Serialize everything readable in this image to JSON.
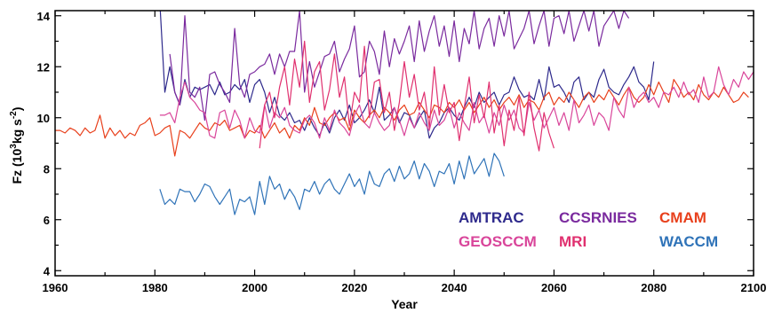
{
  "chart_data": {
    "type": "line",
    "xlabel": "Year",
    "ylabel": "Fz (10",
    "ylabel_sup1": "3",
    "ylabel_mid": "kg s",
    "ylabel_sup2": "-2",
    "ylabel_end": ")",
    "xlim": [
      1960,
      2100
    ],
    "ylim": [
      3.8,
      14.2
    ],
    "xticks": [
      1960,
      1980,
      2000,
      2020,
      2040,
      2060,
      2080,
      2100
    ],
    "yticks": [
      4,
      6,
      8,
      10,
      12,
      14
    ],
    "legend_position": "bottom-right",
    "grid": false,
    "series": [
      {
        "name": "AMTRAC",
        "color": "#2e2a8c",
        "x_start": 1981,
        "values": [
          14.5,
          11.0,
          12.0,
          11.0,
          10.5,
          11.5,
          10.8,
          11.2,
          11.1,
          11.2,
          11.3,
          10.9,
          11.4,
          10.9,
          11.0,
          11.3,
          11.1,
          11.5,
          10.6,
          11.3,
          11.5,
          11.0,
          10.2,
          10.8,
          10.1,
          9.9,
          10.2,
          9.8,
          9.9,
          9.5,
          10.0,
          9.6,
          9.3,
          9.8,
          9.4,
          10.0,
          10.3,
          9.9,
          10.5,
          9.8,
          10.0,
          10.3,
          10.7,
          10.2,
          11.2,
          9.9,
          10.1,
          10.4,
          9.8,
          10.2,
          10.1,
          9.6,
          10.0,
          10.3,
          9.2,
          9.6,
          9.8,
          10.2,
          10.4,
          10.1,
          9.9,
          10.4,
          10.8,
          10.4,
          11.0,
          10.6,
          10.8,
          11.0,
          10.5,
          10.9,
          11.0,
          11.6,
          11.1,
          10.8,
          10.9,
          10.7,
          11.5,
          10.7,
          12.0,
          11.2,
          11.3,
          11.0,
          10.6,
          11.4,
          11.6,
          10.7,
          11.0,
          10.8,
          11.5,
          11.9,
          11.2,
          11.0,
          10.9,
          11.3,
          11.6,
          12.0,
          11.4,
          11.2,
          10.7,
          12.2
        ]
      },
      {
        "name": "CCSRNIES",
        "color": "#7a2a9e",
        "x_start": 1983,
        "values": [
          12.5,
          11.0,
          10.5,
          14.0,
          11.0,
          10.8,
          11.2,
          9.9,
          11.7,
          11.8,
          11.3,
          11.0,
          10.6,
          13.5,
          11.3,
          10.8,
          11.7,
          11.8,
          12.0,
          12.1,
          12.5,
          11.7,
          12.5,
          12.0,
          12.6,
          12.6,
          14.2,
          11.0,
          12.2,
          11.2,
          11.8,
          12.4,
          12.5,
          13.0,
          11.8,
          12.3,
          12.7,
          13.6,
          11.6,
          11.8,
          13.0,
          12.6,
          11.7,
          13.4,
          12.0,
          13.1,
          12.5,
          13.0,
          13.6,
          12.2,
          13.8,
          12.6,
          13.4,
          14.0,
          12.8,
          13.6,
          12.4,
          13.8,
          12.2,
          13.5,
          12.9,
          14.2,
          12.7,
          13.5,
          13.9,
          12.8,
          14.0,
          13.2,
          14.2,
          12.7,
          13.1,
          13.5,
          14.2,
          12.9,
          13.6,
          14.2,
          12.8,
          13.9,
          14.0,
          13.3,
          14.2,
          13.0,
          13.6,
          14.2,
          13.4,
          14.2,
          12.8,
          13.6,
          13.9,
          14.2,
          13.5,
          14.2,
          13.9
        ]
      },
      {
        "name": "CMAM",
        "color": "#e8401c",
        "x_start": 1960,
        "values": [
          9.5,
          9.5,
          9.4,
          9.6,
          9.5,
          9.3,
          9.6,
          9.4,
          9.5,
          10.1,
          9.2,
          9.6,
          9.3,
          9.5,
          9.2,
          9.4,
          9.3,
          9.7,
          9.8,
          10.0,
          9.3,
          9.4,
          9.6,
          9.7,
          8.5,
          9.5,
          9.4,
          9.2,
          9.5,
          9.8,
          9.6,
          9.5,
          9.8,
          9.7,
          9.9,
          9.5,
          9.6,
          9.7,
          9.2,
          9.5,
          9.4,
          9.7,
          9.2,
          9.5,
          9.8,
          9.4,
          9.6,
          9.2,
          9.7,
          9.5,
          10.0,
          9.7,
          10.4,
          9.8,
          9.7,
          10.0,
          10.2,
          9.9,
          10.0,
          9.5,
          10.3,
          10.0,
          9.8,
          10.1,
          10.3,
          10.0,
          10.4,
          10.2,
          9.9,
          10.3,
          10.5,
          10.1,
          10.2,
          10.6,
          10.3,
          10.0,
          10.5,
          10.4,
          10.2,
          10.6,
          10.4,
          10.7,
          10.3,
          10.6,
          10.2,
          10.5,
          10.8,
          10.4,
          10.7,
          10.3,
          10.6,
          10.8,
          10.5,
          10.9,
          10.4,
          10.7,
          10.6,
          10.3,
          10.8,
          11.0,
          10.5,
          10.8,
          10.6,
          11.0,
          10.7,
          10.4,
          10.8,
          11.0,
          10.6,
          10.9,
          10.7,
          11.1,
          10.8,
          10.5,
          10.9,
          11.2,
          10.8,
          10.6,
          10.8,
          11.3,
          10.9,
          11.4,
          11.0,
          10.6,
          11.5,
          11.2,
          10.8,
          11.0,
          10.7,
          11.3,
          10.9,
          10.7,
          11.0,
          10.8,
          11.2,
          10.9,
          10.6,
          10.7,
          11.0,
          10.8
        ]
      },
      {
        "name": "GEOSCCM",
        "color": "#d9459a",
        "x_start": 1981,
        "values": [
          10.1,
          10.1,
          10.2,
          9.8,
          10.8,
          11.4,
          10.8,
          10.6,
          10.3,
          10.2,
          9.3,
          9.2,
          10.2,
          10.3,
          9.6,
          10.3,
          9.9,
          9.2,
          10.0,
          9.5,
          9.4,
          10.5,
          9.6,
          10.2,
          10.0,
          10.4,
          9.7,
          9.5,
          9.4,
          9.9,
          10.1,
          9.8,
          9.2,
          10.0,
          9.5,
          10.3,
          9.8,
          9.6,
          9.3,
          10.1,
          10.5,
          9.8,
          9.6,
          10.2,
          9.8,
          9.5,
          9.7,
          10.4,
          9.9,
          9.3,
          10.0,
          9.6,
          10.2,
          9.8,
          9.5,
          10.3,
          9.7,
          9.9,
          10.4,
          9.6,
          10.2,
          9.8,
          9.5,
          10.6,
          9.8,
          10.1,
          9.4,
          10.2,
          9.7,
          10.5,
          9.9,
          10.3,
          9.6,
          9.4,
          10.6,
          9.9,
          10.3,
          9.6,
          10.0,
          10.4,
          9.7,
          10.2,
          9.5,
          10.7,
          9.8,
          10.1,
          10.5,
          9.7,
          10.2,
          10.0,
          9.5,
          10.8,
          10.3,
          10.0,
          11.2,
          10.4,
          10.8,
          11.0,
          10.6,
          10.8,
          10.4,
          11.0,
          10.9,
          11.2,
          10.8,
          11.4,
          10.9,
          11.1,
          10.6,
          11.6,
          10.8,
          11.0,
          12.0,
          11.3,
          10.9,
          11.5,
          11.2,
          11.8,
          11.5,
          11.8
        ]
      },
      {
        "name": "MRI",
        "color": "#e0306f",
        "x_start": 2001,
        "values": [
          8.8,
          10.5,
          11.0,
          10.0,
          11.2,
          12.0,
          10.5,
          12.3,
          11.2,
          13.0,
          10.6,
          11.8,
          12.2,
          10.3,
          11.1,
          12.5,
          10.8,
          11.6,
          9.7,
          11.0,
          10.6,
          12.8,
          10.0,
          11.4,
          11.5,
          10.2,
          11.0,
          9.5,
          10.6,
          12.2,
          10.8,
          11.7,
          10.3,
          11.0,
          9.6,
          12.0,
          10.1,
          11.3,
          10.2,
          10.6,
          9.1,
          10.4,
          11.6,
          9.8,
          10.9,
          10.0,
          11.4,
          9.4,
          10.5,
          8.9,
          10.3,
          9.5,
          10.8,
          9.3,
          11.0,
          9.6,
          8.7,
          10.2,
          9.4,
          8.8
        ]
      },
      {
        "name": "WACCM",
        "color": "#2f73b8",
        "x_start": 1981,
        "values": [
          7.2,
          6.6,
          6.8,
          6.6,
          7.2,
          7.1,
          7.1,
          6.7,
          7.0,
          7.4,
          7.3,
          6.9,
          6.6,
          6.9,
          7.2,
          6.2,
          6.8,
          6.7,
          6.9,
          6.2,
          7.5,
          6.6,
          7.7,
          7.2,
          7.4,
          6.8,
          7.2,
          6.9,
          6.4,
          7.2,
          7.1,
          7.5,
          7.0,
          7.4,
          7.6,
          7.2,
          7.0,
          7.4,
          7.8,
          7.3,
          7.6,
          7.0,
          7.9,
          7.4,
          7.3,
          7.8,
          8.0,
          7.5,
          8.1,
          7.6,
          7.8,
          8.3,
          7.6,
          8.2,
          7.9,
          7.3,
          7.9,
          7.8,
          8.2,
          7.4,
          8.3,
          7.6,
          8.5,
          7.8,
          8.1,
          8.4,
          7.7,
          8.6,
          8.3,
          7.7
        ]
      }
    ]
  },
  "legend": {
    "items": [
      {
        "label": "AMTRAC",
        "color": "#2e2a8c"
      },
      {
        "label": "CCSRNIES",
        "color": "#7a2a9e"
      },
      {
        "label": "CMAM",
        "color": "#e8401c"
      },
      {
        "label": "GEOSCCM",
        "color": "#d9459a"
      },
      {
        "label": "MRI",
        "color": "#e0306f"
      },
      {
        "label": "WACCM",
        "color": "#2f73b8"
      }
    ]
  }
}
